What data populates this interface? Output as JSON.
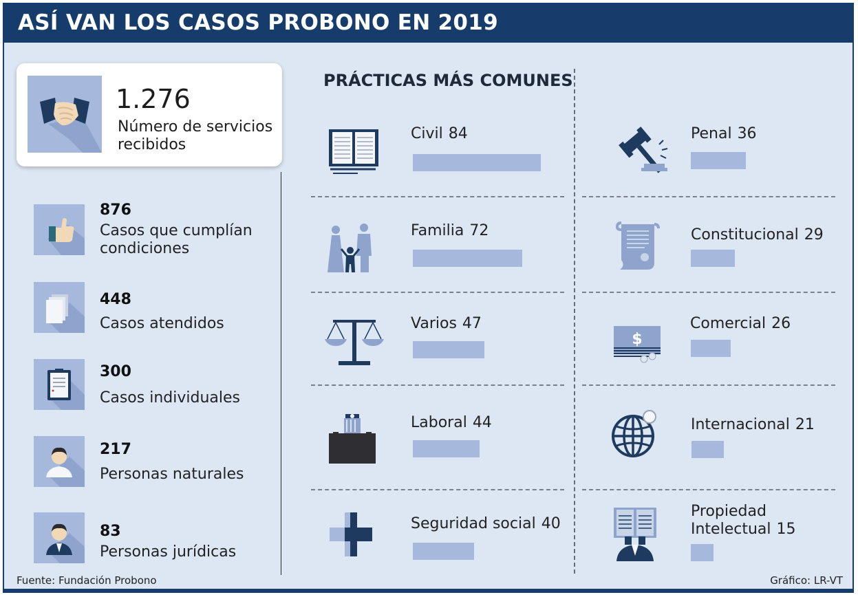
{
  "header": {
    "title": "ASÍ VAN LOS CASOS PROBONO EN 2019"
  },
  "hero": {
    "number": "1.276",
    "label": "Número de servicios recibidos",
    "icon": "handshake-icon"
  },
  "stats": [
    {
      "number": "876",
      "label": "Casos que cumplían condiciones",
      "icon": "thumbs-up-icon"
    },
    {
      "number": "448",
      "label": "Casos atendidos",
      "icon": "documents-icon"
    },
    {
      "number": "300",
      "label": "Casos individuales",
      "icon": "clipboard-icon"
    },
    {
      "number": "217",
      "label": "Personas naturales",
      "icon": "person-icon"
    },
    {
      "number": "83",
      "label": "Personas jurídicas",
      "icon": "business-person-icon"
    }
  ],
  "section_title": "PRÁCTICAS MÁS COMUNES",
  "chart_data": {
    "type": "bar",
    "title": "PRÁCTICAS MÁS COMUNES",
    "categories": [
      "Civil",
      "Familia",
      "Varios",
      "Laboral",
      "Seguridad social",
      "Penal",
      "Constitucional",
      "Comercial",
      "Internacional",
      "Propiedad Intelectual"
    ],
    "values": [
      84,
      72,
      47,
      44,
      40,
      36,
      29,
      26,
      21,
      15
    ],
    "bar_color": "#a6b8dc",
    "icons": [
      "book-icon",
      "family-icon",
      "scales-icon",
      "briefcase-icon",
      "medical-cross-icon",
      "gavel-icon",
      "scroll-icon",
      "money-icon",
      "globe-icon",
      "open-book-person-icon"
    ]
  },
  "footer": {
    "source": "Fuente: Fundación Probono",
    "credit": "Gráfico: LR-VT"
  },
  "colors": {
    "navy": "#153c6b",
    "background": "#dde6f3",
    "bar": "#a6b8dc",
    "icon_dark": "#1e3a5f"
  }
}
